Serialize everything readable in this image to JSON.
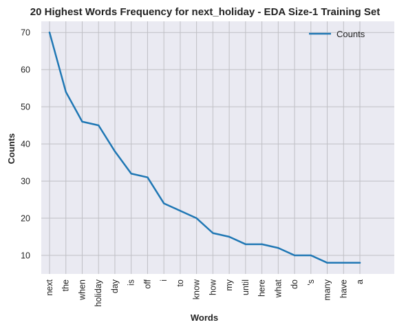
{
  "chart_data": {
    "type": "line",
    "title": "20 Highest Words Frequency for next_holiday - EDA Size-1 Training Set",
    "xlabel": "Words",
    "ylabel": "Counts",
    "categories": [
      "next",
      "the",
      "when",
      "holiday",
      "day",
      "is",
      "off",
      "i",
      "to",
      "know",
      "how",
      "my",
      "until",
      "here",
      "what",
      "do",
      "'s",
      "many",
      "have",
      "a"
    ],
    "series": [
      {
        "name": "Counts",
        "values": [
          70,
          54,
          46,
          45,
          38,
          32,
          31,
          24,
          22,
          20,
          16,
          15,
          13,
          13,
          12,
          10,
          10,
          8,
          8,
          8
        ],
        "color": "#1f77b4"
      }
    ],
    "ylim": [
      5,
      73
    ],
    "yticks": [
      10,
      20,
      30,
      40,
      50,
      60,
      70
    ],
    "grid": true,
    "legend_position": "top-right",
    "background": "#eaeaf2",
    "grid_color": "#bfbfc4"
  }
}
